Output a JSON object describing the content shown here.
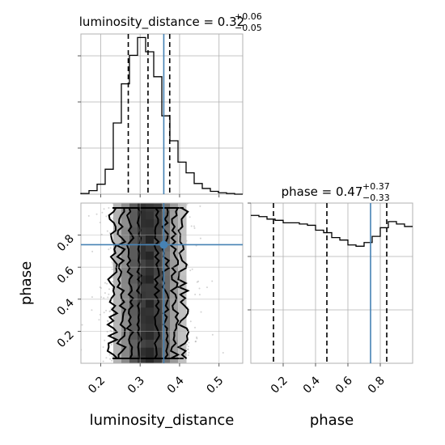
{
  "chart_data": [
    {
      "type": "histogram",
      "panel": "luminosity_distance-marginal",
      "title": {
        "prefix": "luminosity_distance = 0.32",
        "upper": "+0.06",
        "lower": "−0.05"
      },
      "xlim": [
        0.15,
        0.56
      ],
      "bin_edges": [
        0.15,
        0.1705,
        0.191,
        0.2115,
        0.232,
        0.2525,
        0.273,
        0.2935,
        0.314,
        0.3345,
        0.355,
        0.3755,
        0.396,
        0.4165,
        0.437,
        0.4575,
        0.478,
        0.4985,
        0.519,
        0.5395,
        0.56
      ],
      "counts": [
        1,
        5,
        14,
        35,
        100,
        155,
        195,
        220,
        200,
        165,
        110,
        75,
        45,
        30,
        15,
        8,
        4,
        2,
        1,
        0
      ],
      "quantile_lines": [
        0.27,
        0.32,
        0.375
      ],
      "truth": 0.36,
      "colors": {
        "hist": "#000000",
        "truth": "#4682b4",
        "quantile": "#000000"
      }
    },
    {
      "type": "histogram",
      "panel": "phase-marginal",
      "title": {
        "prefix": "phase = 0.47",
        "upper": "+0.37",
        "lower": "−0.33"
      },
      "xlim": [
        0.0,
        1.0
      ],
      "xticks": [
        "0.2",
        "0.4",
        "0.6",
        "0.8"
      ],
      "xlabel": "phase",
      "bin_edges": [
        0,
        0.05,
        0.1,
        0.15,
        0.2,
        0.25,
        0.3,
        0.35,
        0.4,
        0.45,
        0.5,
        0.55,
        0.6,
        0.65,
        0.7,
        0.75,
        0.8,
        0.85,
        0.9,
        0.95,
        1.0
      ],
      "counts": [
        120,
        119,
        117,
        116,
        114,
        114,
        113,
        112,
        108,
        106,
        102,
        100,
        96,
        95,
        98,
        103,
        110,
        115,
        113,
        111
      ],
      "ylim": [
        0,
        130
      ],
      "quantile_lines": [
        0.14,
        0.47,
        0.84
      ],
      "truth": 0.74,
      "colors": {
        "hist": "#000000",
        "truth": "#4682b4",
        "quantile": "#000000"
      }
    },
    {
      "type": "scatter",
      "panel": "2d-luminosity_distance-vs-phase",
      "xlim": [
        0.15,
        0.56
      ],
      "ylim": [
        0.0,
        1.0
      ],
      "xticks": [
        "0.2",
        "0.3",
        "0.4",
        "0.5"
      ],
      "yticks": [
        "0.2",
        "0.4",
        "0.6",
        "0.8"
      ],
      "xlabel": "luminosity_distance",
      "ylabel": "phase",
      "truth": {
        "x": 0.36,
        "y": 0.74
      },
      "density_center_x": 0.32,
      "density_sigma_x": 0.05,
      "contour_levels_sigma": [
        0.5,
        1.0,
        1.5,
        2.0
      ],
      "colors": {
        "points": "#7f7f7f",
        "contour": "#000000",
        "truth": "#4682b4"
      }
    }
  ]
}
